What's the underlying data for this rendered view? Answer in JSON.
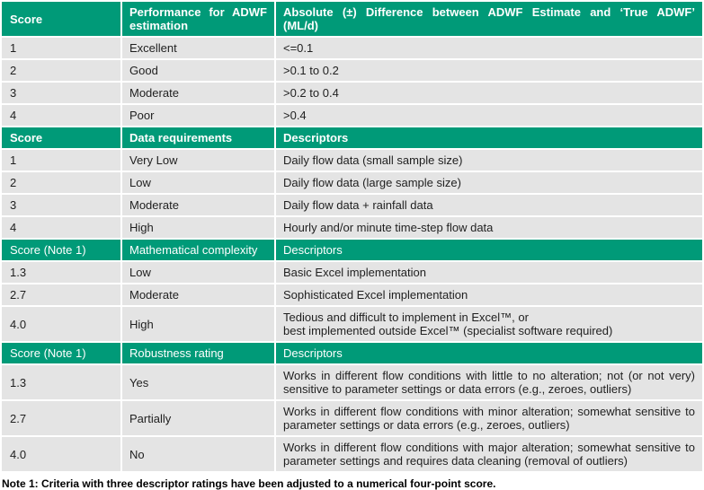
{
  "colors": {
    "header_bg": "#009A78",
    "header_text": "#FFFFFF",
    "row_bg": "#E4E4E4",
    "body_text": "#1F1F1F",
    "gridline": "#FFFFFF",
    "page_bg": "#FFFFFF"
  },
  "sections": [
    {
      "id": "performance-for-adwf-estimation",
      "header_bold": true,
      "justify_header": true,
      "header": [
        "Score",
        "Performance for ADWF\nestimation",
        "Absolute (±) Difference between ADWF Estimate and ‘True ADWF’\n(ML/d)"
      ],
      "rows": [
        [
          "1",
          "Excellent",
          "<=0.1"
        ],
        [
          "2",
          "Good",
          ">0.1 to 0.2"
        ],
        [
          "3",
          "Moderate",
          ">0.2 to 0.4"
        ],
        [
          "4",
          "Poor",
          ">0.4"
        ]
      ]
    },
    {
      "id": "data-requirements",
      "header_bold": true,
      "justify_header": false,
      "header": [
        "Score",
        "Data requirements",
        "Descriptors"
      ],
      "rows": [
        [
          "1",
          "Very Low",
          "Daily flow data (small sample size)"
        ],
        [
          "2",
          "Low",
          "Daily flow data (large sample size)"
        ],
        [
          "3",
          "Moderate",
          "Daily flow data + rainfall data"
        ],
        [
          "4",
          "High",
          "Hourly and/or minute time-step flow data"
        ]
      ]
    },
    {
      "id": "mathematical-complexity",
      "header_bold": false,
      "justify_header": false,
      "header": [
        "Score (Note 1)",
        "Mathematical complexity",
        "Descriptors"
      ],
      "rows": [
        [
          "1.3",
          "Low",
          "Basic Excel implementation"
        ],
        [
          "2.7",
          "Moderate",
          "Sophisticated Excel implementation"
        ],
        [
          "4.0",
          "High",
          "Tedious and difficult to implement in Excel™, or\nbest implemented outside Excel™ (specialist software required)"
        ]
      ]
    },
    {
      "id": "robustness-rating",
      "header_bold": false,
      "justify_header": false,
      "header": [
        "Score (Note 1)",
        "Robustness rating",
        "Descriptors"
      ],
      "rows": [
        [
          "1.3",
          "Yes",
          "Works in different flow conditions with little to no alteration; not (or not very) sensitive to parameter settings or data errors (e.g., zeroes, outliers)"
        ],
        [
          "2.7",
          "Partially",
          "Works in different flow conditions with minor alteration; somewhat sensitive to parameter settings or data errors (e.g., zeroes, outliers)"
        ],
        [
          "4.0",
          "No",
          "Works in different flow conditions with major alteration; somewhat sensitive to parameter settings and requires data cleaning (removal of outliers)"
        ]
      ]
    }
  ],
  "footnote": "Note 1: Criteria with three descriptor ratings have been adjusted to a numerical four-point score."
}
